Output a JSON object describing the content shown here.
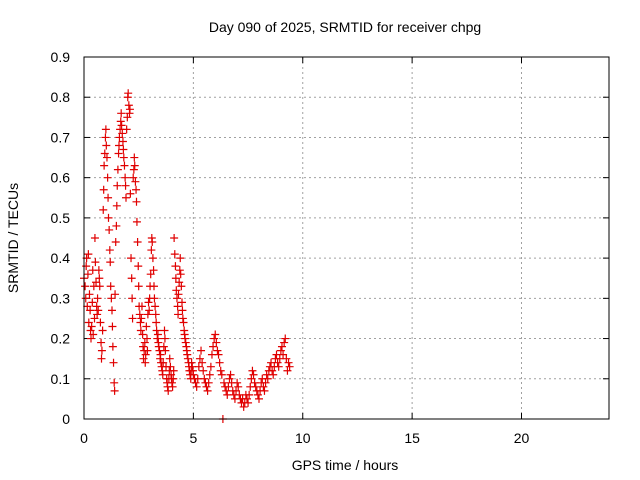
{
  "chart_data": {
    "type": "scatter",
    "title": "Day 090 of 2025, SRMTID for receiver chpg",
    "xlabel": "GPS time / hours",
    "ylabel": "SRMTID / TECUs",
    "xlim": [
      0,
      24
    ],
    "ylim": [
      0,
      0.9
    ],
    "xticks": [
      0,
      5,
      10,
      15,
      20
    ],
    "xtick_labels": [
      "0",
      "5",
      "10",
      "15",
      "20"
    ],
    "yticks": [
      0,
      0.1,
      0.2,
      0.3,
      0.4,
      0.5,
      0.6,
      0.7,
      0.8,
      0.9
    ],
    "ytick_labels": [
      "0",
      "0.1",
      "0.2",
      "0.3",
      "0.4",
      "0.5",
      "0.6",
      "0.7",
      "0.8",
      "0.9"
    ],
    "grid": true,
    "marker": "plus",
    "color": "#e00000",
    "series": [
      {
        "name": "SRMTID",
        "points": [
          [
            0.0,
            0.35
          ],
          [
            0.05,
            0.33
          ],
          [
            0.08,
            0.3
          ],
          [
            0.1,
            0.38
          ],
          [
            0.12,
            0.4
          ],
          [
            0.15,
            0.28
          ],
          [
            0.18,
            0.36
          ],
          [
            0.2,
            0.41
          ],
          [
            0.22,
            0.24
          ],
          [
            0.25,
            0.31
          ],
          [
            0.28,
            0.27
          ],
          [
            0.3,
            0.22
          ],
          [
            0.32,
            0.2
          ],
          [
            0.35,
            0.23
          ],
          [
            0.38,
            0.29
          ],
          [
            0.4,
            0.37
          ],
          [
            0.42,
            0.21
          ],
          [
            0.45,
            0.33
          ],
          [
            0.48,
            0.25
          ],
          [
            0.5,
            0.45
          ],
          [
            0.52,
            0.39
          ],
          [
            0.55,
            0.34
          ],
          [
            0.58,
            0.28
          ],
          [
            0.6,
            0.26
          ],
          [
            0.62,
            0.3
          ],
          [
            0.65,
            0.27
          ],
          [
            0.68,
            0.37
          ],
          [
            0.7,
            0.35
          ],
          [
            0.72,
            0.33
          ],
          [
            0.75,
            0.24
          ],
          [
            0.78,
            0.19
          ],
          [
            0.8,
            0.15
          ],
          [
            0.82,
            0.17
          ],
          [
            0.85,
            0.22
          ],
          [
            0.88,
            0.52
          ],
          [
            0.9,
            0.57
          ],
          [
            0.92,
            0.63
          ],
          [
            0.95,
            0.66
          ],
          [
            0.98,
            0.7
          ],
          [
            1.0,
            0.72
          ],
          [
            1.02,
            0.68
          ],
          [
            1.05,
            0.65
          ],
          [
            1.08,
            0.6
          ],
          [
            1.1,
            0.55
          ],
          [
            1.12,
            0.5
          ],
          [
            1.15,
            0.47
          ],
          [
            1.18,
            0.42
          ],
          [
            1.2,
            0.39
          ],
          [
            1.22,
            0.33
          ],
          [
            1.25,
            0.3
          ],
          [
            1.28,
            0.27
          ],
          [
            1.3,
            0.23
          ],
          [
            1.32,
            0.18
          ],
          [
            1.35,
            0.14
          ],
          [
            1.38,
            0.09
          ],
          [
            1.4,
            0.07
          ],
          [
            1.42,
            0.31
          ],
          [
            1.45,
            0.44
          ],
          [
            1.48,
            0.48
          ],
          [
            1.5,
            0.53
          ],
          [
            1.52,
            0.58
          ],
          [
            1.55,
            0.62
          ],
          [
            1.58,
            0.66
          ],
          [
            1.6,
            0.68
          ],
          [
            1.62,
            0.7
          ],
          [
            1.65,
            0.72
          ],
          [
            1.68,
            0.74
          ],
          [
            1.7,
            0.76
          ],
          [
            1.72,
            0.73
          ],
          [
            1.75,
            0.71
          ],
          [
            1.78,
            0.69
          ],
          [
            1.8,
            0.67
          ],
          [
            1.82,
            0.65
          ],
          [
            1.85,
            0.63
          ],
          [
            1.88,
            0.6
          ],
          [
            1.9,
            0.58
          ],
          [
            1.92,
            0.55
          ],
          [
            1.95,
            0.72
          ],
          [
            1.98,
            0.75
          ],
          [
            2.0,
            0.8
          ],
          [
            2.02,
            0.81
          ],
          [
            2.05,
            0.78
          ],
          [
            2.08,
            0.76
          ],
          [
            2.1,
            0.77
          ],
          [
            2.12,
            0.56
          ],
          [
            2.15,
            0.4
          ],
          [
            2.18,
            0.35
          ],
          [
            2.2,
            0.3
          ],
          [
            2.22,
            0.25
          ],
          [
            2.25,
            0.6
          ],
          [
            2.28,
            0.62
          ],
          [
            2.3,
            0.65
          ],
          [
            2.32,
            0.63
          ],
          [
            2.35,
            0.59
          ],
          [
            2.38,
            0.57
          ],
          [
            2.4,
            0.54
          ],
          [
            2.42,
            0.49
          ],
          [
            2.45,
            0.44
          ],
          [
            2.48,
            0.38
          ],
          [
            2.5,
            0.33
          ],
          [
            2.52,
            0.28
          ],
          [
            2.55,
            0.26
          ],
          [
            2.58,
            0.24
          ],
          [
            2.6,
            0.22
          ],
          [
            2.62,
            0.25
          ],
          [
            2.65,
            0.28
          ],
          [
            2.68,
            0.21
          ],
          [
            2.7,
            0.18
          ],
          [
            2.72,
            0.15
          ],
          [
            2.75,
            0.17
          ],
          [
            2.78,
            0.19
          ],
          [
            2.8,
            0.14
          ],
          [
            2.82,
            0.16
          ],
          [
            2.85,
            0.23
          ],
          [
            2.88,
            0.2
          ],
          [
            2.9,
            0.17
          ],
          [
            2.92,
            0.26
          ],
          [
            2.95,
            0.29
          ],
          [
            2.98,
            0.27
          ],
          [
            3.0,
            0.3
          ],
          [
            3.02,
            0.33
          ],
          [
            3.05,
            0.36
          ],
          [
            3.08,
            0.42
          ],
          [
            3.1,
            0.45
          ],
          [
            3.12,
            0.44
          ],
          [
            3.15,
            0.4
          ],
          [
            3.18,
            0.37
          ],
          [
            3.2,
            0.33
          ],
          [
            3.22,
            0.3
          ],
          [
            3.25,
            0.28
          ],
          [
            3.28,
            0.26
          ],
          [
            3.3,
            0.24
          ],
          [
            3.32,
            0.22
          ],
          [
            3.35,
            0.2
          ],
          [
            3.38,
            0.21
          ],
          [
            3.4,
            0.19
          ],
          [
            3.42,
            0.18
          ],
          [
            3.45,
            0.17
          ],
          [
            3.48,
            0.15
          ],
          [
            3.5,
            0.16
          ],
          [
            3.52,
            0.14
          ],
          [
            3.55,
            0.13
          ],
          [
            3.58,
            0.12
          ],
          [
            3.6,
            0.11
          ],
          [
            3.62,
            0.14
          ],
          [
            3.65,
            0.18
          ],
          [
            3.68,
            0.22
          ],
          [
            3.7,
            0.2
          ],
          [
            3.72,
            0.17
          ],
          [
            3.75,
            0.13
          ],
          [
            3.78,
            0.1
          ],
          [
            3.8,
            0.09
          ],
          [
            3.82,
            0.08
          ],
          [
            3.85,
            0.07
          ],
          [
            3.88,
            0.1
          ],
          [
            3.9,
            0.12
          ],
          [
            3.92,
            0.15
          ],
          [
            3.95,
            0.13
          ],
          [
            3.98,
            0.11
          ],
          [
            4.0,
            0.1
          ],
          [
            4.02,
            0.09
          ],
          [
            4.05,
            0.08
          ],
          [
            4.08,
            0.1
          ],
          [
            4.1,
            0.12
          ],
          [
            4.12,
            0.45
          ],
          [
            4.15,
            0.41
          ],
          [
            4.18,
            0.38
          ],
          [
            4.2,
            0.35
          ],
          [
            4.22,
            0.32
          ],
          [
            4.25,
            0.3
          ],
          [
            4.28,
            0.28
          ],
          [
            4.3,
            0.26
          ],
          [
            4.32,
            0.31
          ],
          [
            4.35,
            0.34
          ],
          [
            4.38,
            0.37
          ],
          [
            4.4,
            0.4
          ],
          [
            4.42,
            0.36
          ],
          [
            4.45,
            0.33
          ],
          [
            4.48,
            0.29
          ],
          [
            4.5,
            0.27
          ],
          [
            4.52,
            0.25
          ],
          [
            4.55,
            0.24
          ],
          [
            4.58,
            0.22
          ],
          [
            4.6,
            0.21
          ],
          [
            4.62,
            0.2
          ],
          [
            4.65,
            0.19
          ],
          [
            4.68,
            0.18
          ],
          [
            4.7,
            0.17
          ],
          [
            4.72,
            0.16
          ],
          [
            4.75,
            0.15
          ],
          [
            4.78,
            0.14
          ],
          [
            4.8,
            0.13
          ],
          [
            4.82,
            0.12
          ],
          [
            4.85,
            0.11
          ],
          [
            4.88,
            0.1
          ],
          [
            4.9,
            0.12
          ],
          [
            4.92,
            0.14
          ],
          [
            4.95,
            0.13
          ],
          [
            4.98,
            0.12
          ],
          [
            5.0,
            0.11
          ],
          [
            5.05,
            0.1
          ],
          [
            5.1,
            0.09
          ],
          [
            5.15,
            0.08
          ],
          [
            5.2,
            0.1
          ],
          [
            5.25,
            0.13
          ],
          [
            5.3,
            0.15
          ],
          [
            5.35,
            0.17
          ],
          [
            5.4,
            0.14
          ],
          [
            5.45,
            0.12
          ],
          [
            5.5,
            0.1
          ],
          [
            5.55,
            0.09
          ],
          [
            5.6,
            0.08
          ],
          [
            5.65,
            0.07
          ],
          [
            5.7,
            0.09
          ],
          [
            5.75,
            0.11
          ],
          [
            5.8,
            0.13
          ],
          [
            5.85,
            0.16
          ],
          [
            5.9,
            0.18
          ],
          [
            5.95,
            0.2
          ],
          [
            6.0,
            0.21
          ],
          [
            6.05,
            0.19
          ],
          [
            6.1,
            0.17
          ],
          [
            6.15,
            0.16
          ],
          [
            6.2,
            0.14
          ],
          [
            6.25,
            0.12
          ],
          [
            6.3,
            0.11
          ],
          [
            6.35,
            0.0
          ],
          [
            6.4,
            0.09
          ],
          [
            6.45,
            0.08
          ],
          [
            6.5,
            0.07
          ],
          [
            6.55,
            0.06
          ],
          [
            6.6,
            0.08
          ],
          [
            6.65,
            0.1
          ],
          [
            6.7,
            0.11
          ],
          [
            6.75,
            0.09
          ],
          [
            6.8,
            0.07
          ],
          [
            6.85,
            0.06
          ],
          [
            6.9,
            0.05
          ],
          [
            6.95,
            0.07
          ],
          [
            7.0,
            0.09
          ],
          [
            7.05,
            0.08
          ],
          [
            7.1,
            0.06
          ],
          [
            7.15,
            0.05
          ],
          [
            7.2,
            0.04
          ],
          [
            7.25,
            0.05
          ],
          [
            7.3,
            0.03
          ],
          [
            7.35,
            0.04
          ],
          [
            7.4,
            0.06
          ],
          [
            7.45,
            0.05
          ],
          [
            7.5,
            0.04
          ],
          [
            7.55,
            0.06
          ],
          [
            7.6,
            0.08
          ],
          [
            7.65,
            0.1
          ],
          [
            7.7,
            0.12
          ],
          [
            7.75,
            0.11
          ],
          [
            7.8,
            0.09
          ],
          [
            7.85,
            0.08
          ],
          [
            7.9,
            0.07
          ],
          [
            7.95,
            0.06
          ],
          [
            8.0,
            0.05
          ],
          [
            8.05,
            0.07
          ],
          [
            8.1,
            0.09
          ],
          [
            8.15,
            0.1
          ],
          [
            8.2,
            0.08
          ],
          [
            8.25,
            0.07
          ],
          [
            8.3,
            0.09
          ],
          [
            8.35,
            0.11
          ],
          [
            8.4,
            0.1
          ],
          [
            8.45,
            0.12
          ],
          [
            8.5,
            0.13
          ],
          [
            8.55,
            0.14
          ],
          [
            8.6,
            0.12
          ],
          [
            8.65,
            0.11
          ],
          [
            8.7,
            0.13
          ],
          [
            8.75,
            0.15
          ],
          [
            8.8,
            0.16
          ],
          [
            8.85,
            0.14
          ],
          [
            8.9,
            0.13
          ],
          [
            8.95,
            0.15
          ],
          [
            9.0,
            0.17
          ],
          [
            9.05,
            0.18
          ],
          [
            9.1,
            0.16
          ],
          [
            9.15,
            0.19
          ],
          [
            9.2,
            0.2
          ],
          [
            9.25,
            0.15
          ],
          [
            9.3,
            0.12
          ],
          [
            9.35,
            0.14
          ],
          [
            9.4,
            0.13
          ]
        ]
      }
    ]
  }
}
